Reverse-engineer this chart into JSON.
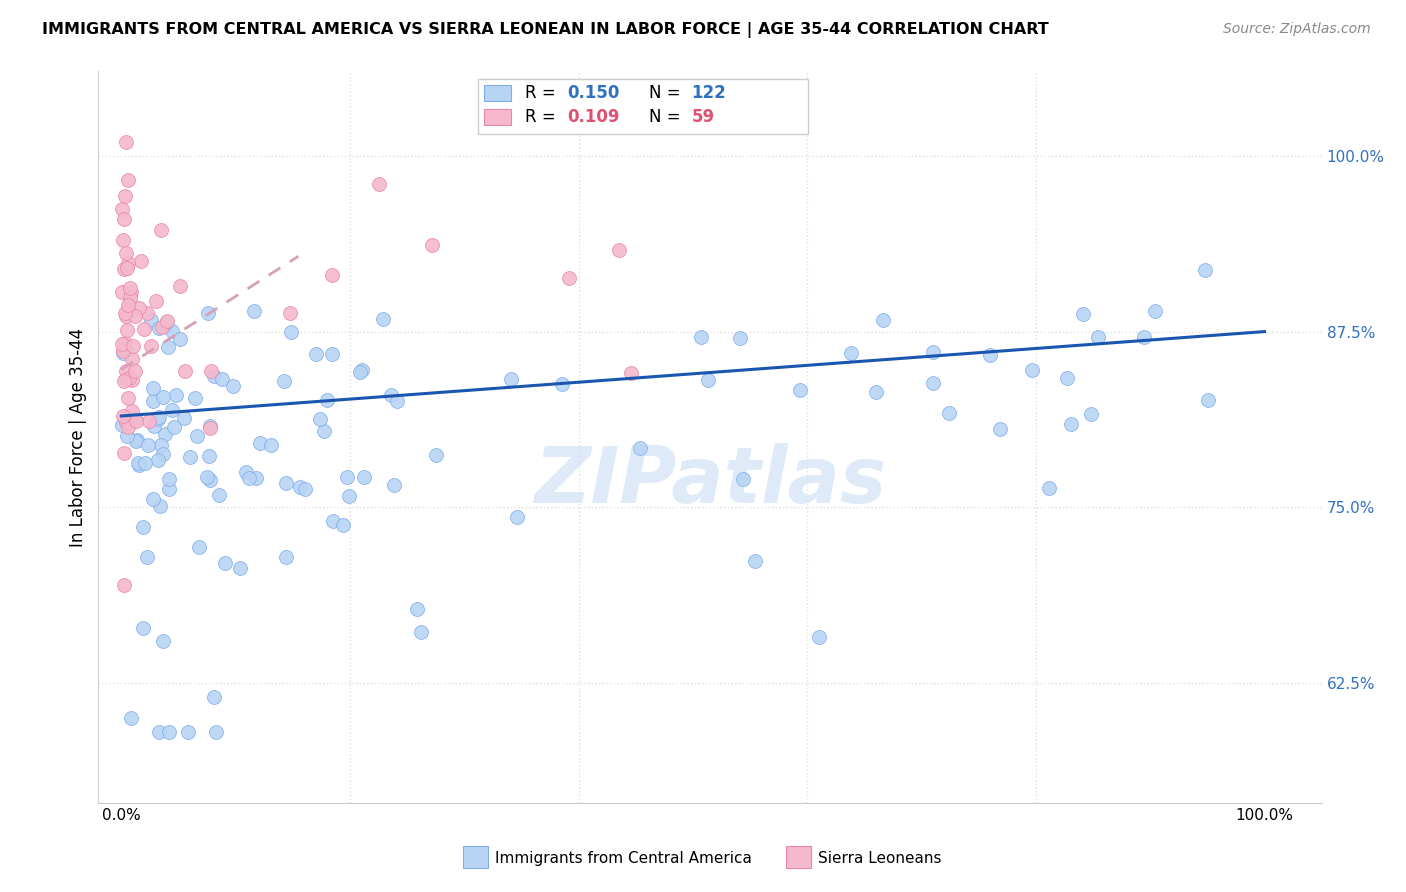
{
  "title": "IMMIGRANTS FROM CENTRAL AMERICA VS SIERRA LEONEAN IN LABOR FORCE | AGE 35-44 CORRELATION CHART",
  "source": "Source: ZipAtlas.com",
  "ylabel": "In Labor Force | Age 35-44",
  "ytick_values": [
    0.625,
    0.75,
    0.875,
    1.0
  ],
  "ytick_labels": [
    "62.5%",
    "75.0%",
    "87.5%",
    "100.0%"
  ],
  "xlim": [
    -0.02,
    1.05
  ],
  "ylim": [
    0.54,
    1.06
  ],
  "legend_blue_r": "0.150",
  "legend_blue_n": "122",
  "legend_pink_r": "0.109",
  "legend_pink_n": "59",
  "blue_fill": "#b8d4f5",
  "blue_edge": "#80aee8",
  "pink_fill": "#f5b8cc",
  "pink_edge": "#e888a8",
  "line_blue_color": "#1a56b0",
  "line_pink_color": "#d8a0b8",
  "watermark": "ZIPatlas",
  "grid_color": "#e0e0e0",
  "right_label_color": "#3070c0",
  "bottom_legend_blue_label": "Immigrants from Central America",
  "bottom_legend_pink_label": "Sierra Leoneans"
}
